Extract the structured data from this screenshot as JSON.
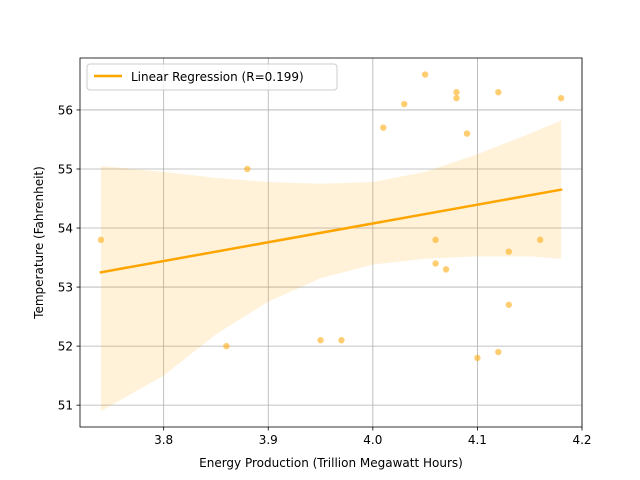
{
  "chart_data": {
    "type": "scatter",
    "xlabel": "Energy Production (Trillion Megawatt Hours)",
    "ylabel": "Temperature (Fahrenheit)",
    "xlim": [
      3.72,
      4.2
    ],
    "ylim": [
      50.63,
      56.88
    ],
    "x_ticks": [
      3.8,
      3.9,
      4.0,
      4.1,
      4.2
    ],
    "x_tick_labels": [
      "3.8",
      "3.9",
      "4.0",
      "4.1",
      "4.2"
    ],
    "y_ticks": [
      51,
      52,
      53,
      54,
      55,
      56
    ],
    "y_tick_labels": [
      "51",
      "52",
      "53",
      "54",
      "55",
      "56"
    ],
    "grid": true,
    "legend_position": "top-left",
    "color": "#ffa500",
    "series": [
      {
        "kind": "points",
        "x": [
          3.74,
          3.86,
          3.88,
          3.95,
          3.97,
          4.01,
          4.03,
          4.05,
          4.06,
          4.06,
          4.07,
          4.08,
          4.08,
          4.09,
          4.1,
          4.12,
          4.12,
          4.13,
          4.13,
          4.16,
          4.18
        ],
        "y": [
          53.8,
          52.0,
          55.0,
          52.1,
          52.1,
          55.7,
          56.1,
          56.6,
          53.8,
          53.4,
          53.3,
          56.3,
          56.2,
          55.6,
          51.8,
          56.3,
          51.9,
          53.6,
          52.7,
          53.8,
          56.2
        ]
      },
      {
        "name": "Linear Regression (R=0.199)",
        "kind": "regression_line",
        "x": [
          3.74,
          4.18
        ],
        "y": [
          53.25,
          54.65
        ]
      },
      {
        "kind": "confidence_band",
        "x": [
          3.74,
          3.8,
          3.85,
          3.9,
          3.95,
          4.0,
          4.05,
          4.1,
          4.15,
          4.18
        ],
        "upper": [
          55.05,
          54.95,
          54.85,
          54.78,
          54.75,
          54.78,
          54.95,
          55.25,
          55.6,
          55.82
        ],
        "lower": [
          50.9,
          51.5,
          52.2,
          52.75,
          53.15,
          53.38,
          53.48,
          53.52,
          53.52,
          53.48
        ]
      }
    ]
  }
}
